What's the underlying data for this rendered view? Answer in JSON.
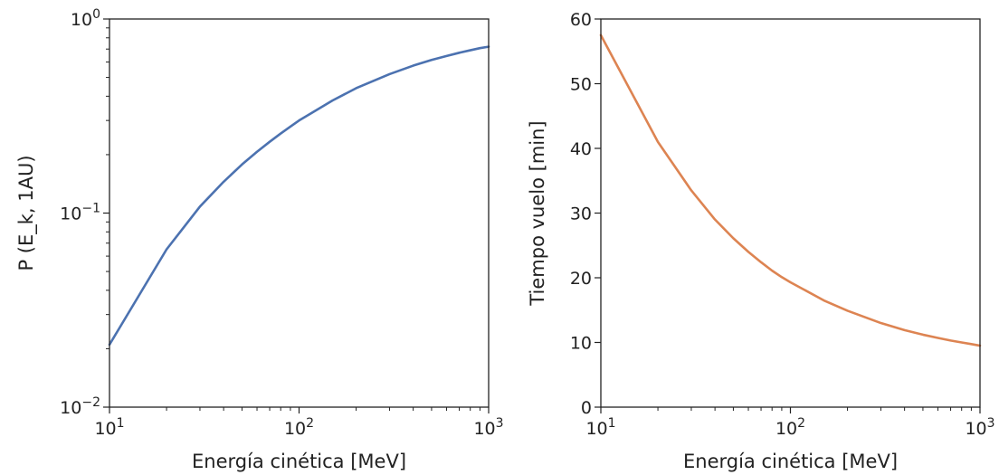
{
  "chart_data": [
    {
      "type": "line",
      "title": "",
      "xlabel": "Energía cinética [MeV]",
      "ylabel": "P (E_k, 1AU)",
      "xscale": "log",
      "yscale": "log",
      "xlim": [
        10,
        1000
      ],
      "ylim": [
        0.01,
        1
      ],
      "x_ticks": [
        {
          "value": 10,
          "base": "10",
          "exp": "1"
        },
        {
          "value": 100,
          "base": "10",
          "exp": "2"
        },
        {
          "value": 1000,
          "base": "10",
          "exp": "3"
        }
      ],
      "y_ticks": [
        {
          "value": 0.01,
          "base": "10",
          "exp": "−2"
        },
        {
          "value": 0.1,
          "base": "10",
          "exp": "−1"
        },
        {
          "value": 1,
          "base": "10",
          "exp": "0"
        }
      ],
      "grid": false,
      "series": [
        {
          "color": "#4c72b0",
          "x": [
            10,
            20,
            30,
            40,
            50,
            60,
            70,
            80,
            90,
            100,
            150,
            200,
            300,
            400,
            500,
            600,
            700,
            800,
            900,
            1000
          ],
          "y": [
            0.021,
            0.065,
            0.108,
            0.145,
            0.178,
            0.207,
            0.233,
            0.257,
            0.279,
            0.3,
            0.38,
            0.44,
            0.52,
            0.575,
            0.615,
            0.645,
            0.67,
            0.69,
            0.708,
            0.72
          ]
        }
      ]
    },
    {
      "type": "line",
      "title": "",
      "xlabel": "Energía cinética [MeV]",
      "ylabel": "Tiempo vuelo [min]",
      "xscale": "log",
      "yscale": "linear",
      "xlim": [
        10,
        1000
      ],
      "ylim": [
        0,
        60
      ],
      "x_ticks": [
        {
          "value": 10,
          "base": "10",
          "exp": "1"
        },
        {
          "value": 100,
          "base": "10",
          "exp": "2"
        },
        {
          "value": 1000,
          "base": "10",
          "exp": "3"
        }
      ],
      "y_ticks": [
        0,
        10,
        20,
        30,
        40,
        50,
        60
      ],
      "grid": false,
      "series": [
        {
          "color": "#dd8452",
          "x": [
            10,
            20,
            30,
            40,
            50,
            60,
            70,
            80,
            90,
            100,
            150,
            200,
            300,
            400,
            500,
            600,
            700,
            800,
            900,
            1000
          ],
          "y": [
            57.5,
            41.0,
            33.5,
            29.0,
            26.1,
            24.0,
            22.4,
            21.1,
            20.1,
            19.3,
            16.5,
            14.9,
            13.0,
            11.9,
            11.2,
            10.7,
            10.3,
            10.0,
            9.75,
            9.5
          ]
        }
      ]
    }
  ]
}
